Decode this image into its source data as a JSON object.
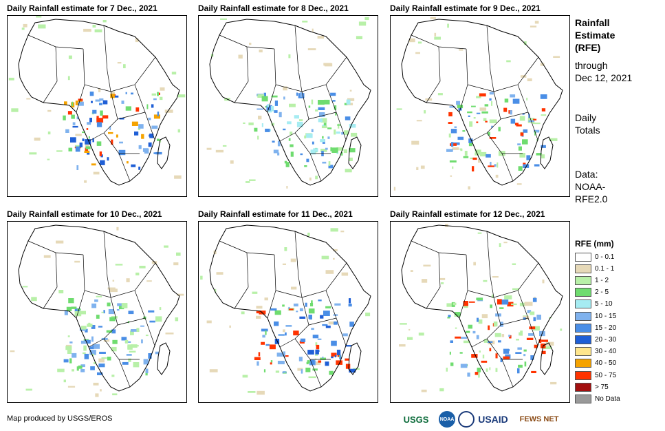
{
  "panels": [
    {
      "title": "Daily Rainfall estimate for 7 Dec., 2021"
    },
    {
      "title": "Daily Rainfall estimate for 8 Dec., 2021"
    },
    {
      "title": "Daily Rainfall estimate for 9 Dec., 2021"
    },
    {
      "title": "Daily Rainfall estimate for 10 Dec., 2021"
    },
    {
      "title": "Daily Rainfall estimate for 11 Dec., 2021"
    },
    {
      "title": "Daily Rainfall estimate for 12 Dec., 2021"
    }
  ],
  "sidebar": {
    "heading_lines": [
      "Rainfall",
      "Estimate",
      "(RFE)"
    ],
    "through_lines": [
      "through",
      "Dec 12, 2021"
    ],
    "totals_lines": [
      "Daily",
      "Totals"
    ],
    "data_lines": [
      "Data:",
      "NOAA-",
      "RFE2.0"
    ]
  },
  "legend": {
    "title": "RFE (mm)",
    "items": [
      {
        "label": "0 - 0.1",
        "color": "#ffffff"
      },
      {
        "label": "0.1 - 1",
        "color": "#e6d9b8"
      },
      {
        "label": "1 - 2",
        "color": "#b8f0a8"
      },
      {
        "label": "2 - 5",
        "color": "#6fdc6f"
      },
      {
        "label": "5 - 10",
        "color": "#a6ecf2"
      },
      {
        "label": "10 - 15",
        "color": "#7fb2ee"
      },
      {
        "label": "15 - 20",
        "color": "#4a8ee6"
      },
      {
        "label": "20 - 30",
        "color": "#1f5fd6"
      },
      {
        "label": "30 - 40",
        "color": "#ffe68c"
      },
      {
        "label": "40 - 50",
        "color": "#f5a300"
      },
      {
        "label": "50 - 75",
        "color": "#ff3300"
      },
      {
        "label": "> 75",
        "color": "#a30f0f"
      },
      {
        "label": "No Data",
        "color": "#999999"
      }
    ]
  },
  "footer": {
    "credit": "Map produced by USGS/EROS",
    "logos": [
      "USGS",
      "NOAA",
      "USAID",
      "FEWS NET"
    ]
  }
}
